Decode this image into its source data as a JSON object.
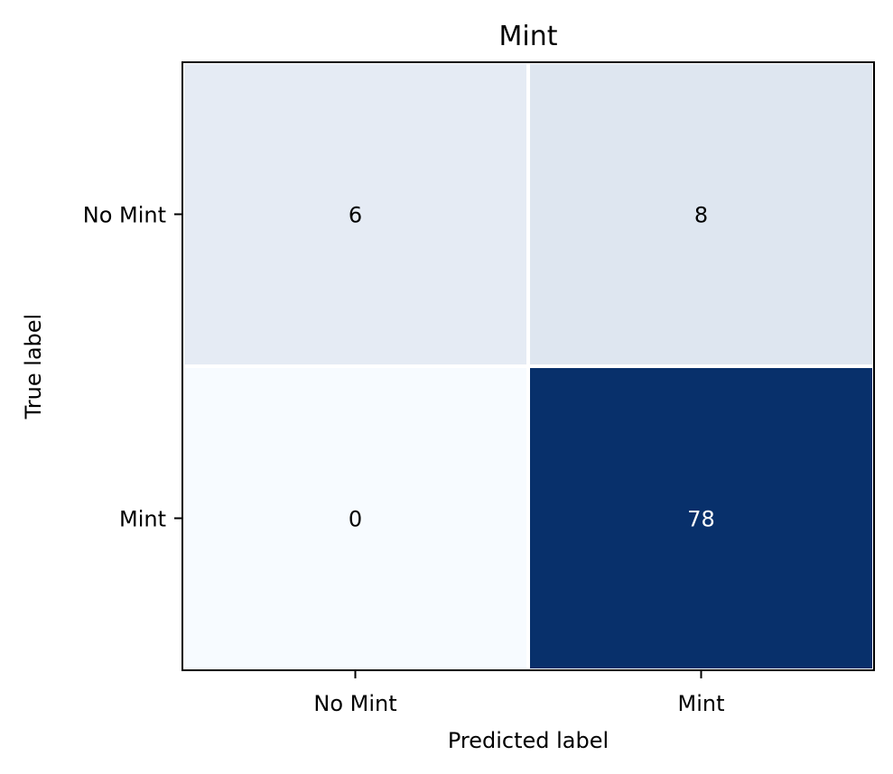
{
  "chart_data": {
    "type": "heatmap",
    "title": "Mint",
    "xlabel": "Predicted label",
    "ylabel": "True label",
    "x_categories": [
      "No Mint",
      "Mint"
    ],
    "y_categories": [
      "No Mint",
      "Mint"
    ],
    "values": [
      [
        6,
        8
      ],
      [
        0,
        78
      ]
    ],
    "colormap": "Blues",
    "color_min": 0,
    "color_max": 78,
    "colors": {
      "low": "#f7fbff",
      "high": "#08306b",
      "gridline": "#ffffff",
      "frame": "#000000",
      "text_dark": "#000000",
      "text_light": "#ffffff"
    },
    "grid": true,
    "legend": "none"
  }
}
